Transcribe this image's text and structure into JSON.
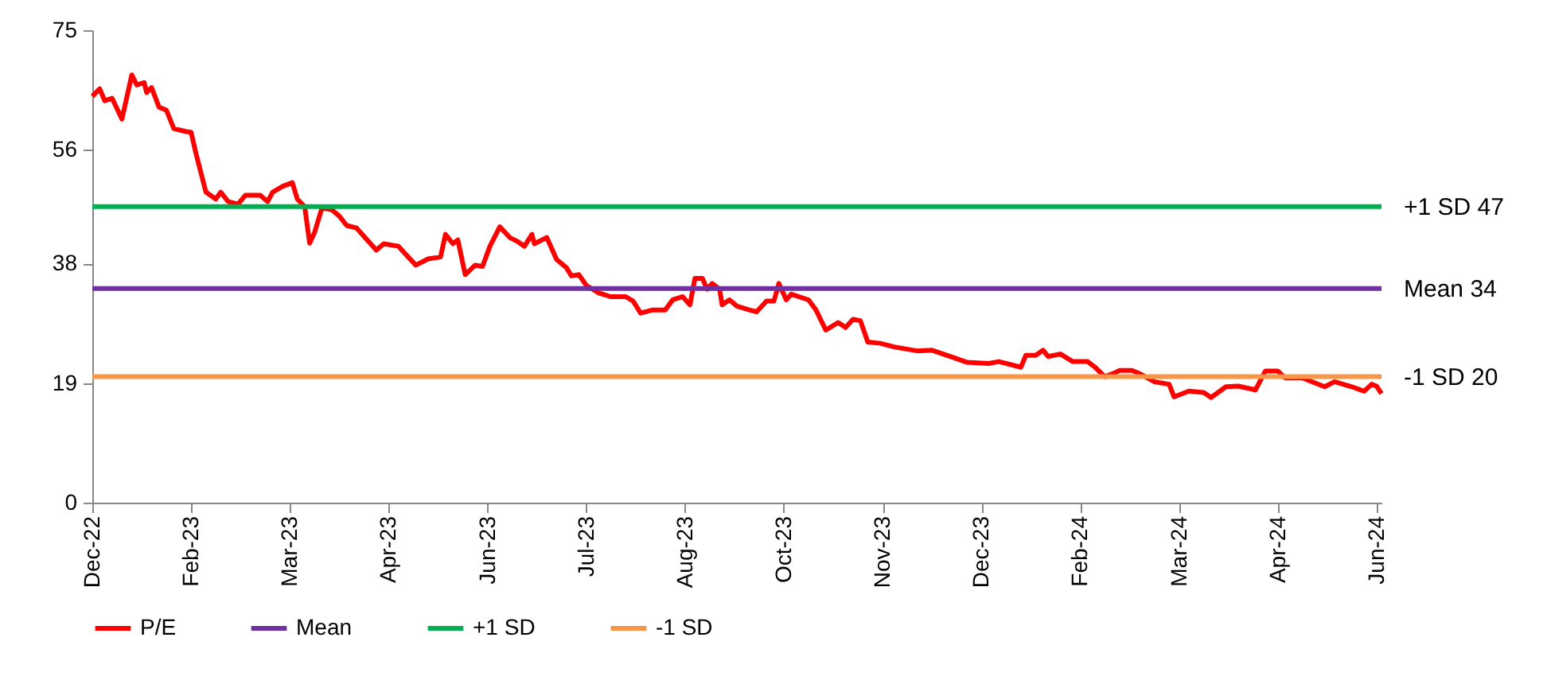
{
  "chart_data": {
    "type": "line",
    "x": [
      "2022-12-30",
      "2023-01-02",
      "2023-01-04",
      "2023-01-07",
      "2023-01-11",
      "2023-01-15",
      "2023-01-17",
      "2023-01-20",
      "2023-01-21",
      "2023-01-23",
      "2023-01-26",
      "2023-01-29",
      "2023-02-01",
      "2023-02-06",
      "2023-02-08",
      "2023-02-10",
      "2023-02-14",
      "2023-02-18",
      "2023-02-20",
      "2023-02-23",
      "2023-02-27",
      "2023-03-02",
      "2023-03-08",
      "2023-03-11",
      "2023-03-13",
      "2023-03-17",
      "2023-03-21",
      "2023-03-23",
      "2023-03-26",
      "2023-03-28",
      "2023-03-30",
      "2023-04-02",
      "2023-04-06",
      "2023-04-09",
      "2023-04-12",
      "2023-04-16",
      "2023-04-24",
      "2023-04-27",
      "2023-05-03",
      "2023-05-05",
      "2023-05-10",
      "2023-05-15",
      "2023-05-20",
      "2023-05-22",
      "2023-05-25",
      "2023-05-27",
      "2023-05-30",
      "2023-06-03",
      "2023-06-06",
      "2023-06-09",
      "2023-06-13",
      "2023-06-17",
      "2023-06-20",
      "2023-06-23",
      "2023-06-26",
      "2023-06-27",
      "2023-07-02",
      "2023-07-06",
      "2023-07-10",
      "2023-07-12",
      "2023-07-15",
      "2023-07-18",
      "2023-07-23",
      "2023-07-28",
      "2023-08-03",
      "2023-08-06",
      "2023-08-09",
      "2023-08-14",
      "2023-08-19",
      "2023-08-22",
      "2023-08-26",
      "2023-08-29",
      "2023-08-31",
      "2023-09-03",
      "2023-09-05",
      "2023-09-07",
      "2023-09-10",
      "2023-09-11",
      "2023-09-14",
      "2023-09-17",
      "2023-09-22",
      "2023-09-25",
      "2023-09-29",
      "2023-10-02",
      "2023-10-04",
      "2023-10-07",
      "2023-10-09",
      "2023-10-16",
      "2023-10-19",
      "2023-10-23",
      "2023-10-28",
      "2023-10-31",
      "2023-11-03",
      "2023-11-06",
      "2023-11-09",
      "2023-11-14",
      "2023-11-20",
      "2023-11-29",
      "2023-12-05",
      "2023-12-14",
      "2023-12-19",
      "2023-12-28",
      "2024-01-01",
      "2024-01-10",
      "2024-01-12",
      "2024-01-16",
      "2024-01-19",
      "2024-01-21",
      "2024-01-26",
      "2024-01-31",
      "2024-02-06",
      "2024-02-09",
      "2024-02-13",
      "2024-02-17",
      "2024-02-19",
      "2024-02-24",
      "2024-02-27",
      "2024-03-04",
      "2024-03-10",
      "2024-03-12",
      "2024-03-18",
      "2024-03-24",
      "2024-03-27",
      "2024-04-02",
      "2024-04-07",
      "2024-04-14",
      "2024-04-18",
      "2024-04-23",
      "2024-04-26",
      "2024-05-03",
      "2024-05-12",
      "2024-05-16",
      "2024-05-23",
      "2024-05-28",
      "2024-05-31",
      "2024-06-02",
      "2024-06-04"
    ],
    "series": [
      {
        "name": "P/E",
        "color": "#ff0000",
        "values": [
          64.5,
          65.7,
          63.8,
          64.2,
          60.9,
          67.9,
          66.3,
          66.7,
          65.1,
          65.9,
          62.8,
          62.3,
          59.4,
          58.9,
          58.8,
          55.4,
          49.3,
          48.2,
          49.3,
          47.8,
          47.4,
          48.8,
          48.8,
          47.8,
          49.3,
          50.2,
          50.8,
          48.2,
          47.0,
          41.2,
          42.9,
          46.8,
          46.5,
          45.5,
          44.0,
          43.6,
          40.1,
          41.1,
          40.7,
          39.8,
          37.7,
          38.7,
          39.0,
          42.6,
          41.1,
          41.7,
          36.2,
          37.7,
          37.5,
          40.7,
          43.8,
          42.1,
          41.5,
          40.7,
          42.6,
          41.1,
          42.1,
          38.6,
          37.3,
          36.0,
          36.2,
          34.5,
          33.3,
          32.7,
          32.7,
          32.0,
          30.1,
          30.6,
          30.6,
          32.2,
          32.7,
          31.4,
          35.6,
          35.6,
          33.9,
          34.8,
          33.9,
          31.4,
          32.2,
          31.2,
          30.6,
          30.3,
          32.0,
          32.0,
          34.8,
          32.2,
          33.1,
          32.2,
          30.6,
          27.4,
          28.6,
          27.8,
          29.1,
          28.9,
          25.5,
          25.3,
          24.7,
          24.1,
          24.2,
          23.0,
          22.3,
          22.1,
          22.4,
          21.5,
          23.4,
          23.4,
          24.2,
          23.2,
          23.6,
          22.4,
          22.4,
          21.5,
          20.0,
          20.6,
          21.0,
          21.0,
          20.5,
          19.2,
          18.8,
          16.8,
          17.7,
          17.5,
          16.7,
          18.4,
          18.5,
          17.9,
          20.9,
          20.9,
          19.8,
          19.8,
          18.4,
          19.2,
          18.4,
          17.7,
          18.8,
          18.5,
          17.3
        ]
      },
      {
        "name": "Mean",
        "color": "#7030a0",
        "x": [
          "2022-12-30",
          "2024-06-04"
        ],
        "values": [
          34,
          34
        ]
      },
      {
        "name": "+1 SD",
        "color": "#00b050",
        "x": [
          "2022-12-30",
          "2024-06-04"
        ],
        "values": [
          47,
          47
        ]
      },
      {
        "name": "-1 SD",
        "color": "#f79646",
        "x": [
          "2022-12-30",
          "2024-06-04"
        ],
        "values": [
          20,
          20
        ]
      }
    ],
    "xlim": [
      "2022-12-30",
      "2024-06-04"
    ],
    "xticks": [
      {
        "value": "2022-12-30",
        "label": "Dec-22"
      },
      {
        "value": "2023-02-08",
        "label": "Feb-23"
      },
      {
        "value": "2023-03-20",
        "label": "Mar-23"
      },
      {
        "value": "2023-04-29",
        "label": "Apr-23"
      },
      {
        "value": "2023-06-08",
        "label": "Jun-23"
      },
      {
        "value": "2023-07-18",
        "label": "Jul-23"
      },
      {
        "value": "2023-08-27",
        "label": "Aug-23"
      },
      {
        "value": "2023-10-06",
        "label": "Oct-23"
      },
      {
        "value": "2023-11-15",
        "label": "Nov-23"
      },
      {
        "value": "2023-12-25",
        "label": "Dec-23"
      },
      {
        "value": "2024-02-03",
        "label": "Feb-24"
      },
      {
        "value": "2024-03-14",
        "label": "Mar-24"
      },
      {
        "value": "2024-04-23",
        "label": "Apr-24"
      },
      {
        "value": "2024-06-02",
        "label": "Jun-24"
      }
    ],
    "ylim": [
      0,
      75
    ],
    "yticks": [
      0,
      19,
      38,
      56,
      75
    ],
    "annotations": [
      {
        "text": "+1 SD 47",
        "x": "2024-06-04",
        "y": 47
      },
      {
        "text": "Mean 34",
        "x": "2024-06-04",
        "y": 34
      },
      {
        "text": "-1 SD 20",
        "x": "2024-06-04",
        "y": 20
      }
    ],
    "legend": "bottom"
  }
}
